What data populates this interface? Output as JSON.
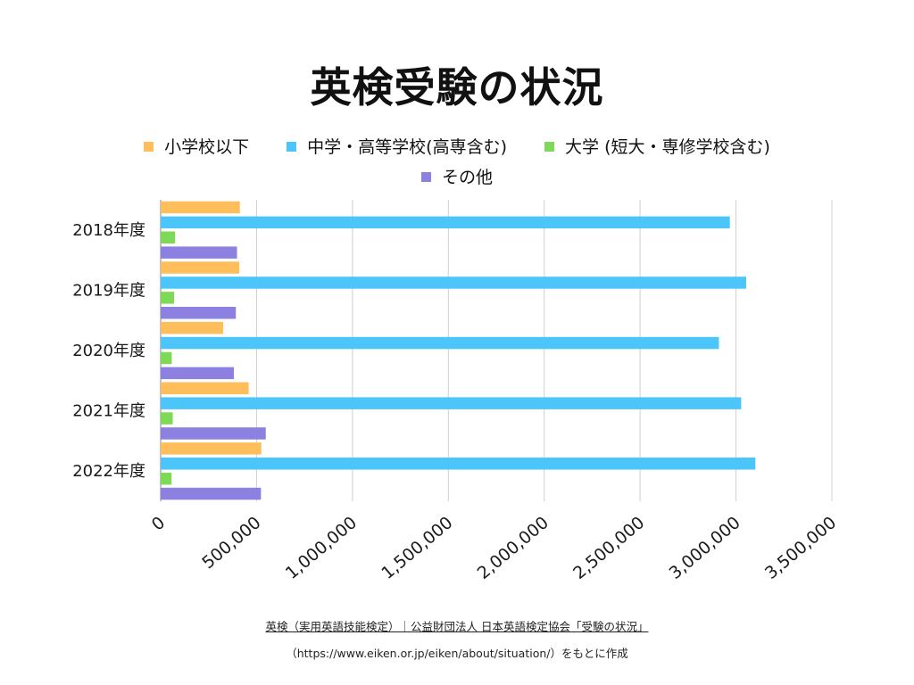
{
  "chart_data": {
    "type": "bar",
    "orientation": "horizontal",
    "title": "英検受験の状況",
    "categories": [
      "2018年度",
      "2019年度",
      "2020年度",
      "2021年度",
      "2022年度"
    ],
    "series": [
      {
        "name": "小学校以下",
        "color": "#FFBE5C",
        "values": [
          413000,
          410000,
          326000,
          459000,
          525000
        ]
      },
      {
        "name": "中学・高等学校(高専含む)",
        "color": "#4CC6FA",
        "values": [
          2968000,
          3053000,
          2911000,
          3027000,
          3101000
        ]
      },
      {
        "name": "大学 (短大・専修学校含む)",
        "color": "#7ED957",
        "values": [
          75000,
          70000,
          58000,
          63000,
          57000
        ]
      },
      {
        "name": "その他",
        "color": "#8C80E0",
        "values": [
          398000,
          392000,
          382000,
          548000,
          523000
        ]
      }
    ],
    "x_ticks": [
      "0",
      "500,000",
      "1,000,000",
      "1,500,000",
      "2,000,000",
      "2,500,000",
      "3,000,000",
      "3,500,000"
    ],
    "xlim": [
      0,
      3500000
    ],
    "grid": true,
    "legend_position": "top"
  },
  "source": {
    "line1": "英検（実用英語技能検定）｜公益財団法人 日本英語検定協会「受験の状況」",
    "line2": "（https://www.eiken.or.jp/eiken/about/situation/）をもとに作成"
  }
}
